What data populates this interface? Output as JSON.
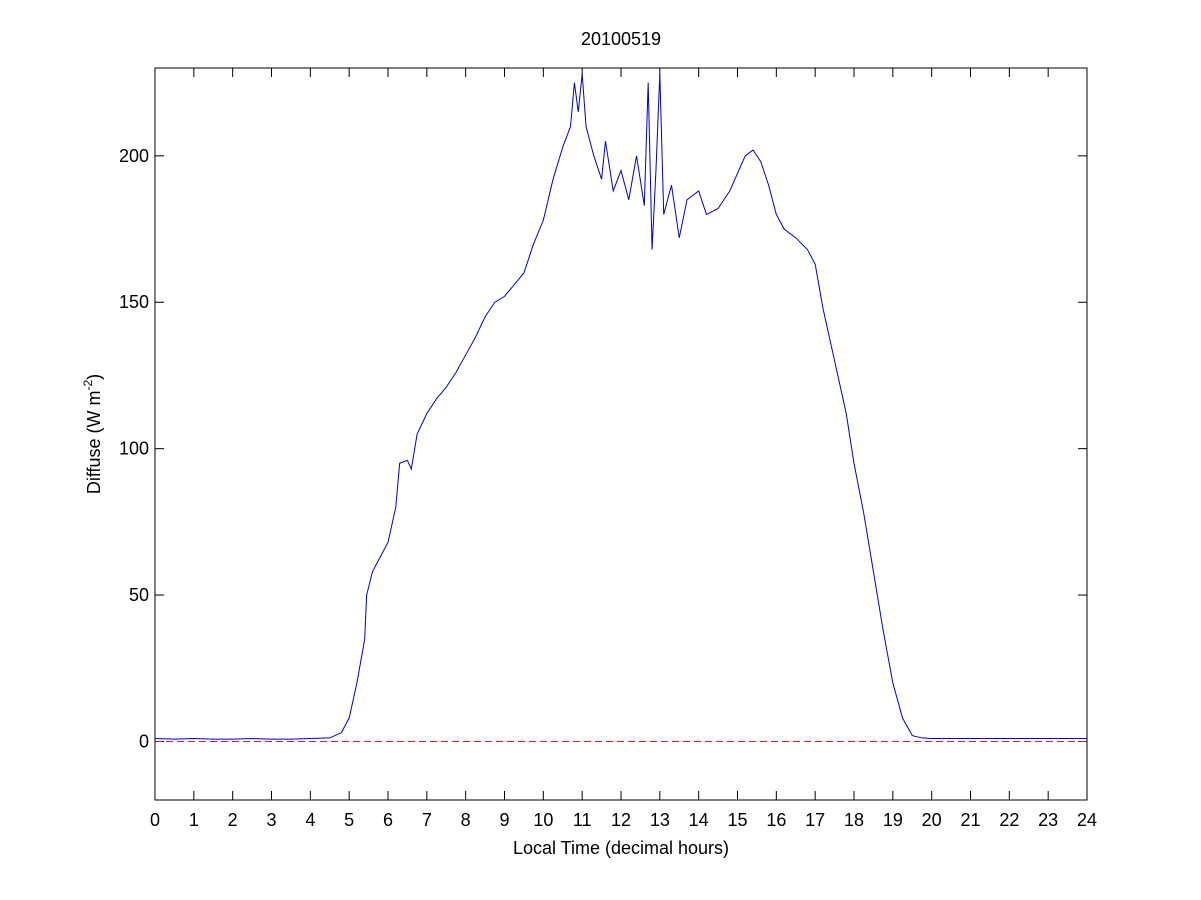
{
  "chart_data": {
    "type": "line",
    "title": "20100519",
    "xlabel": "Local Time (decimal hours)",
    "ylabel": [
      "Diffuse (W m",
      "-2",
      ")"
    ],
    "xlim": [
      0,
      24
    ],
    "ylim": [
      -20,
      230
    ],
    "xticks": [
      0,
      1,
      2,
      3,
      4,
      5,
      6,
      7,
      8,
      9,
      10,
      11,
      12,
      13,
      14,
      15,
      16,
      17,
      18,
      19,
      20,
      21,
      22,
      23,
      24
    ],
    "yticks": [
      0,
      50,
      100,
      150,
      200
    ],
    "grid": false,
    "hline": {
      "value": 0,
      "color": "#cc2222",
      "dashed": true
    },
    "x": [
      0,
      0.5,
      1,
      1.5,
      2,
      2.5,
      3,
      3.5,
      4,
      4.5,
      4.8,
      5,
      5.2,
      5.4,
      5.45,
      5.6,
      5.8,
      6,
      6.2,
      6.3,
      6.5,
      6.6,
      6.75,
      7,
      7.25,
      7.5,
      7.75,
      8,
      8.25,
      8.5,
      8.75,
      9,
      9.25,
      9.5,
      9.75,
      10,
      10.25,
      10.5,
      10.7,
      10.8,
      10.9,
      11,
      11.1,
      11.3,
      11.5,
      11.6,
      11.8,
      12,
      12.2,
      12.4,
      12.6,
      12.7,
      12.8,
      12.9,
      13,
      13.1,
      13.3,
      13.5,
      13.7,
      14,
      14.2,
      14.5,
      14.8,
      15,
      15.2,
      15.4,
      15.6,
      15.8,
      16,
      16.2,
      16.5,
      16.8,
      17,
      17.2,
      17.5,
      17.8,
      18,
      18.25,
      18.5,
      18.75,
      19,
      19.25,
      19.5,
      19.75,
      20,
      21,
      22,
      23,
      24
    ],
    "series": [
      {
        "color": "#0000cc",
        "values": [
          1,
          0.8,
          1,
          0.8,
          0.8,
          1,
          0.8,
          0.8,
          1,
          1.2,
          3,
          8,
          20,
          35,
          50,
          58,
          63,
          68,
          80,
          95,
          96,
          93,
          105,
          112,
          117,
          121,
          126,
          132,
          138,
          145,
          150,
          152,
          156,
          160,
          170,
          178,
          192,
          203,
          210,
          225,
          215,
          228,
          210,
          200,
          192,
          205,
          188,
          195,
          185,
          200,
          183,
          225,
          168,
          195,
          228,
          180,
          190,
          172,
          185,
          188,
          180,
          182,
          188,
          194,
          200,
          202,
          198,
          190,
          180,
          175,
          172,
          168,
          163,
          148,
          130,
          112,
          95,
          78,
          58,
          38,
          20,
          8,
          2,
          1.2,
          1,
          1,
          1,
          1,
          1
        ]
      }
    ]
  }
}
